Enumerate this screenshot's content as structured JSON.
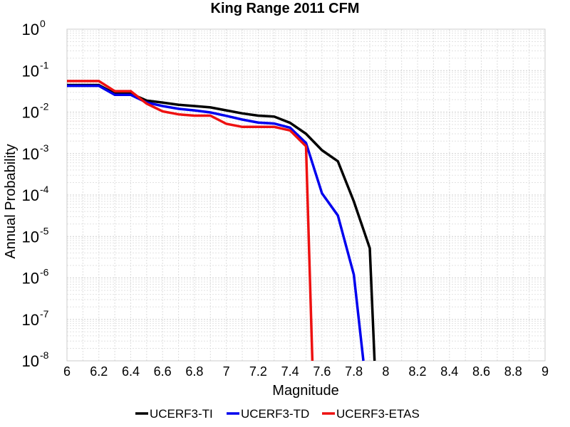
{
  "chart_data": {
    "type": "line",
    "title": "King Range 2011 CFM",
    "xlabel": "Magnitude",
    "ylabel": "Annual Probability",
    "xlim": [
      6,
      9
    ],
    "ylim": [
      1e-08,
      1
    ],
    "yscale": "log",
    "grid": true,
    "legend_position": "bottom-center",
    "x_ticks": [
      "6",
      "6.2",
      "6.4",
      "6.6",
      "6.8",
      "7",
      "7.2",
      "7.4",
      "7.6",
      "7.8",
      "8",
      "8.2",
      "8.4",
      "8.6",
      "8.8",
      "9"
    ],
    "y_ticks": [
      {
        "base": "10",
        "exp": "0"
      },
      {
        "base": "10",
        "exp": "-1"
      },
      {
        "base": "10",
        "exp": "-2"
      },
      {
        "base": "10",
        "exp": "-3"
      },
      {
        "base": "10",
        "exp": "-4"
      },
      {
        "base": "10",
        "exp": "-5"
      },
      {
        "base": "10",
        "exp": "-6"
      },
      {
        "base": "10",
        "exp": "-7"
      },
      {
        "base": "10",
        "exp": "-8"
      }
    ],
    "series": [
      {
        "name": "UCERF3-TI",
        "color": "#000000",
        "points": [
          [
            6.0,
            0.045
          ],
          [
            6.1,
            0.045
          ],
          [
            6.2,
            0.045
          ],
          [
            6.3,
            0.028
          ],
          [
            6.4,
            0.028
          ],
          [
            6.5,
            0.019
          ],
          [
            6.6,
            0.017
          ],
          [
            6.7,
            0.015
          ],
          [
            6.8,
            0.014
          ],
          [
            6.9,
            0.013
          ],
          [
            7.0,
            0.011
          ],
          [
            7.1,
            0.0093
          ],
          [
            7.2,
            0.0082
          ],
          [
            7.3,
            0.0078
          ],
          [
            7.4,
            0.0055
          ],
          [
            7.5,
            0.003
          ],
          [
            7.6,
            0.0012
          ],
          [
            7.7,
            0.00065
          ],
          [
            7.8,
            7e-05
          ],
          [
            7.9,
            5.2e-06
          ],
          [
            7.93,
            1e-08
          ]
        ]
      },
      {
        "name": "UCERF3-TD",
        "color": "#0000ee",
        "points": [
          [
            6.0,
            0.043
          ],
          [
            6.1,
            0.043
          ],
          [
            6.2,
            0.043
          ],
          [
            6.3,
            0.026
          ],
          [
            6.4,
            0.026
          ],
          [
            6.5,
            0.017
          ],
          [
            6.6,
            0.014
          ],
          [
            6.7,
            0.012
          ],
          [
            6.8,
            0.011
          ],
          [
            6.9,
            0.0098
          ],
          [
            7.0,
            0.0081
          ],
          [
            7.1,
            0.0066
          ],
          [
            7.2,
            0.0056
          ],
          [
            7.3,
            0.0053
          ],
          [
            7.4,
            0.0042
          ],
          [
            7.5,
            0.0018
          ],
          [
            7.6,
            0.00011
          ],
          [
            7.7,
            3.2e-05
          ],
          [
            7.8,
            1.2e-06
          ],
          [
            7.86,
            1e-08
          ]
        ]
      },
      {
        "name": "UCERF3-ETAS",
        "color": "#ee1111",
        "points": [
          [
            6.0,
            0.056
          ],
          [
            6.1,
            0.056
          ],
          [
            6.2,
            0.056
          ],
          [
            6.3,
            0.032
          ],
          [
            6.4,
            0.032
          ],
          [
            6.5,
            0.016
          ],
          [
            6.6,
            0.0104
          ],
          [
            6.7,
            0.0088
          ],
          [
            6.8,
            0.0082
          ],
          [
            6.9,
            0.0082
          ],
          [
            7.0,
            0.0052
          ],
          [
            7.1,
            0.0044
          ],
          [
            7.2,
            0.0044
          ],
          [
            7.3,
            0.0044
          ],
          [
            7.4,
            0.0036
          ],
          [
            7.5,
            0.0015
          ],
          [
            7.54,
            1e-08
          ]
        ]
      }
    ]
  }
}
